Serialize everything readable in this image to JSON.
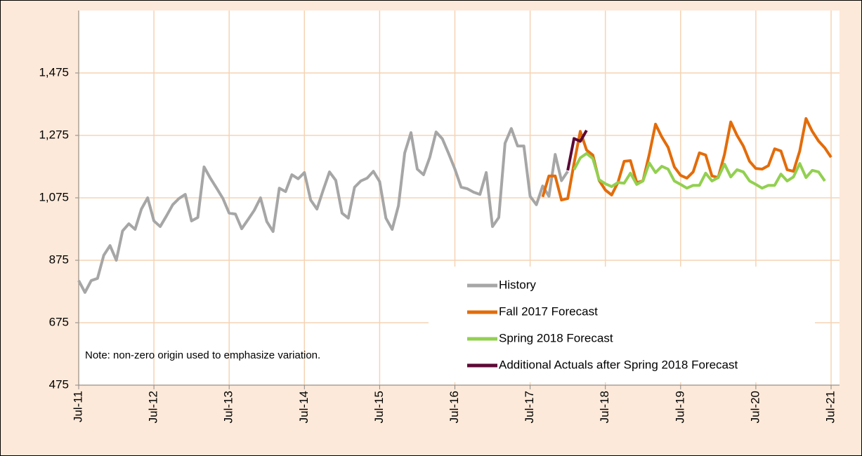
{
  "chart_data": {
    "type": "line",
    "categories": [
      "Jul-11",
      null,
      null,
      null,
      null,
      null,
      null,
      null,
      null,
      null,
      null,
      null,
      "Jul-12",
      null,
      null,
      null,
      null,
      null,
      null,
      null,
      null,
      null,
      null,
      null,
      "Jul-13",
      null,
      null,
      null,
      null,
      null,
      null,
      null,
      null,
      null,
      null,
      null,
      "Jul-14",
      null,
      null,
      null,
      null,
      null,
      null,
      null,
      null,
      null,
      null,
      null,
      "Jul-15",
      null,
      null,
      null,
      null,
      null,
      null,
      null,
      null,
      null,
      null,
      null,
      "Jul-16",
      null,
      null,
      null,
      null,
      null,
      null,
      null,
      null,
      null,
      null,
      null,
      "Jul-17",
      null,
      null,
      null,
      null,
      null,
      null,
      null,
      null,
      null,
      null,
      null,
      "Jul-18",
      null,
      null,
      null,
      null,
      null,
      null,
      null,
      null,
      null,
      null,
      null,
      "Jul-19",
      null,
      null,
      null,
      null,
      null,
      null,
      null,
      null,
      null,
      null,
      null,
      "Jul-20",
      null,
      null,
      null,
      null,
      null,
      null,
      null,
      null,
      null,
      null,
      null,
      "Jul-21"
    ],
    "series": [
      {
        "name": "History",
        "color": "#a6a6a6",
        "values": [
          810,
          772,
          810,
          817,
          891,
          922,
          875,
          969,
          992,
          974,
          1039,
          1075,
          1001,
          983,
          1017,
          1053,
          1073,
          1086,
          1001,
          1012,
          1174,
          1138,
          1106,
          1073,
          1026,
          1023,
          976,
          1005,
          1035,
          1075,
          999,
          967,
          1106,
          1095,
          1149,
          1136,
          1156,
          1068,
          1039,
          1100,
          1158,
          1131,
          1026,
          1010,
          1109,
          1129,
          1138,
          1160,
          1127,
          1010,
          974,
          1050,
          1219,
          1284,
          1167,
          1149,
          1205,
          1286,
          1264,
          1217,
          1167,
          1109,
          1104,
          1093,
          1086,
          1156,
          983,
          1012,
          1250,
          1297,
          1241,
          1241,
          1080,
          1053,
          1113,
          1080,
          1214,
          1130,
          1160,
          null,
          null,
          null,
          null,
          null,
          null,
          null,
          null,
          null,
          null,
          null,
          null,
          null,
          null,
          null,
          null,
          null,
          null,
          null,
          null,
          null,
          null,
          null,
          null,
          null,
          null,
          null,
          null,
          null,
          null,
          null,
          null,
          null,
          null,
          null,
          null,
          null,
          null,
          null,
          null,
          null,
          null
        ]
      },
      {
        "name": "Fall 2017 Forecast",
        "color": "#e36c0a",
        "values": [
          null,
          null,
          null,
          null,
          null,
          null,
          null,
          null,
          null,
          null,
          null,
          null,
          null,
          null,
          null,
          null,
          null,
          null,
          null,
          null,
          null,
          null,
          null,
          null,
          null,
          null,
          null,
          null,
          null,
          null,
          null,
          null,
          null,
          null,
          null,
          null,
          null,
          null,
          null,
          null,
          null,
          null,
          null,
          null,
          null,
          null,
          null,
          null,
          null,
          null,
          null,
          null,
          null,
          null,
          null,
          null,
          null,
          null,
          null,
          null,
          null,
          null,
          null,
          null,
          null,
          null,
          null,
          null,
          null,
          null,
          null,
          null,
          null,
          null,
          1078,
          1145,
          1145,
          1068,
          1073,
          1185,
          1288,
          1228,
          1212,
          1131,
          1100,
          1084,
          1124,
          1192,
          1194,
          1124,
          1129,
          1214,
          1311,
          1270,
          1237,
          1174,
          1147,
          1138,
          1158,
          1219,
          1212,
          1145,
          1140,
          1214,
          1318,
          1275,
          1241,
          1192,
          1169,
          1167,
          1178,
          1232,
          1225,
          1165,
          1160,
          1225,
          1329,
          1288,
          1257,
          1235,
          1205
        ]
      },
      {
        "name": "Spring 2018 Forecast",
        "color": "#92d050",
        "values": [
          null,
          null,
          null,
          null,
          null,
          null,
          null,
          null,
          null,
          null,
          null,
          null,
          null,
          null,
          null,
          null,
          null,
          null,
          null,
          null,
          null,
          null,
          null,
          null,
          null,
          null,
          null,
          null,
          null,
          null,
          null,
          null,
          null,
          null,
          null,
          null,
          null,
          null,
          null,
          null,
          null,
          null,
          null,
          null,
          null,
          null,
          null,
          null,
          null,
          null,
          null,
          null,
          null,
          null,
          null,
          null,
          null,
          null,
          null,
          null,
          null,
          null,
          null,
          null,
          null,
          null,
          null,
          null,
          null,
          null,
          null,
          null,
          null,
          null,
          null,
          null,
          null,
          null,
          null,
          1165,
          1203,
          1217,
          1201,
          1133,
          1120,
          1111,
          1124,
          1122,
          1154,
          1118,
          1129,
          1187,
          1156,
          1176,
          1167,
          1129,
          1118,
          1106,
          1115,
          1115,
          1154,
          1129,
          1140,
          1183,
          1142,
          1165,
          1158,
          1129,
          1118,
          1106,
          1115,
          1115,
          1151,
          1129,
          1142,
          1185,
          1140,
          1163,
          1158,
          1129,
          null
        ]
      },
      {
        "name": "Additional Actuals after Spring 2018 Forecast",
        "color": "#5c0a35",
        "values": [
          null,
          null,
          null,
          null,
          null,
          null,
          null,
          null,
          null,
          null,
          null,
          null,
          null,
          null,
          null,
          null,
          null,
          null,
          null,
          null,
          null,
          null,
          null,
          null,
          null,
          null,
          null,
          null,
          null,
          null,
          null,
          null,
          null,
          null,
          null,
          null,
          null,
          null,
          null,
          null,
          null,
          null,
          null,
          null,
          null,
          null,
          null,
          null,
          null,
          null,
          null,
          null,
          null,
          null,
          null,
          null,
          null,
          null,
          null,
          null,
          null,
          null,
          null,
          null,
          null,
          null,
          null,
          null,
          null,
          null,
          null,
          null,
          null,
          null,
          null,
          null,
          null,
          null,
          1163,
          1265,
          1256,
          1291,
          null,
          null,
          null,
          null,
          null,
          null,
          null,
          null,
          null,
          null,
          null,
          null,
          null,
          null,
          null,
          null,
          null,
          null,
          null,
          null,
          null,
          null,
          null,
          null,
          null,
          null,
          null,
          null,
          null,
          null,
          null,
          null,
          null,
          null,
          null,
          null,
          null,
          null,
          null
        ]
      }
    ],
    "ylim": [
      475,
      1675
    ],
    "yticks": [
      {
        "value": 475,
        "label": "475"
      },
      {
        "value": 675,
        "label": "675"
      },
      {
        "value": 875,
        "label": "875"
      },
      {
        "value": 1075,
        "label": "1,075"
      },
      {
        "value": 1275,
        "label": "1,275"
      },
      {
        "value": 1475,
        "label": "1,475"
      }
    ],
    "grid": true,
    "legend": "lower right",
    "annotation": "Note: non-zero origin used to emphasize variation."
  }
}
